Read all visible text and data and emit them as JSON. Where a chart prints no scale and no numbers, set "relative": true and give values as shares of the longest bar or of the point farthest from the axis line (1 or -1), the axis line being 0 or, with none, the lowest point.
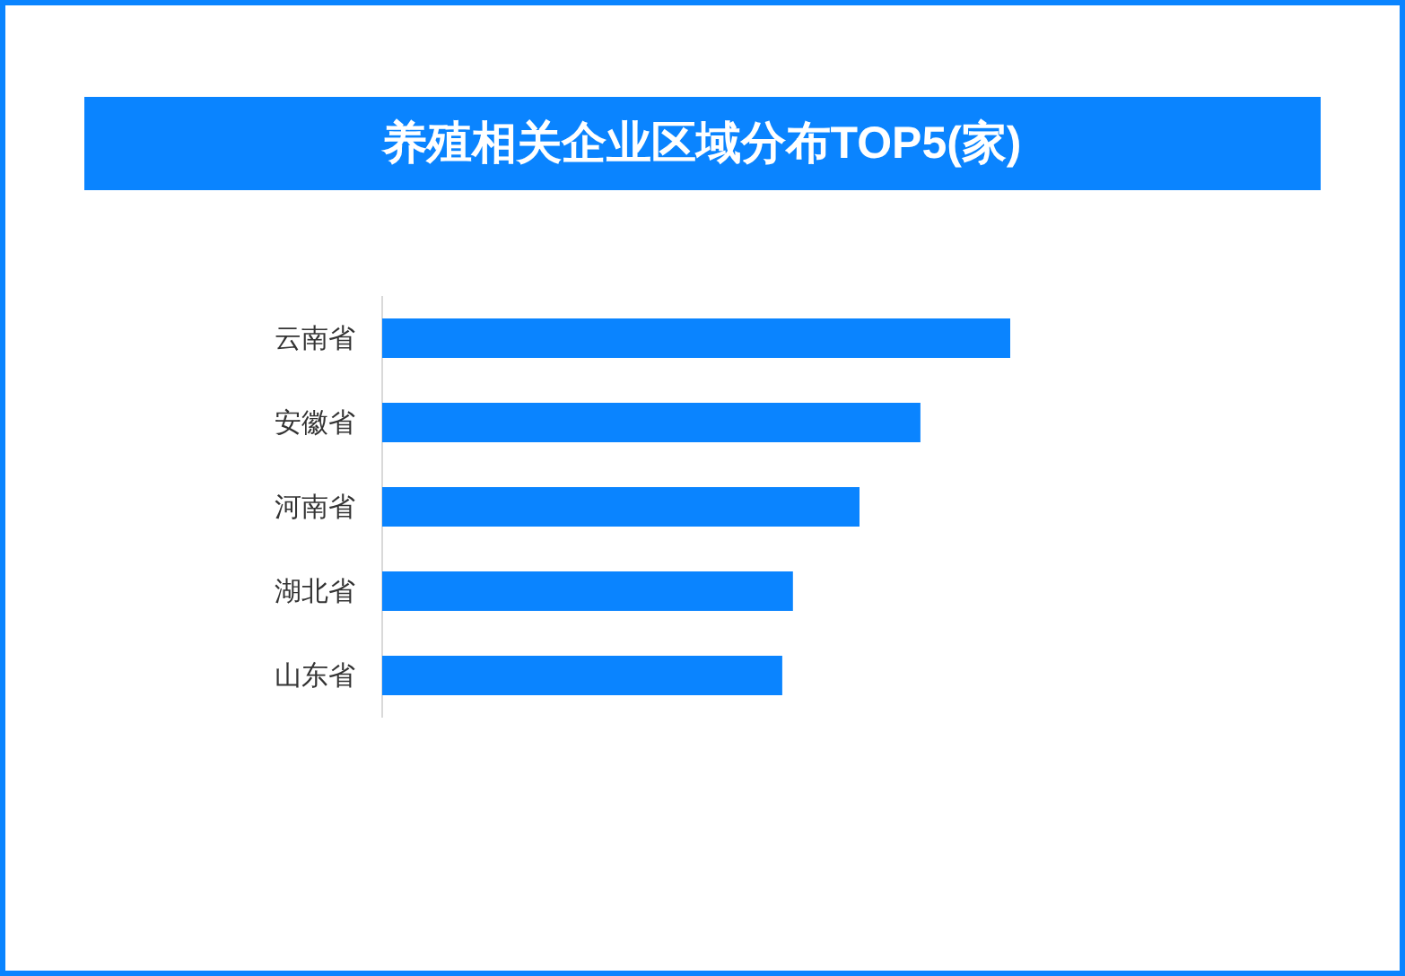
{
  "chart_data": {
    "type": "bar",
    "orientation": "horizontal",
    "relative": true,
    "title": "养殖相关企业区域分布TOP5(家)",
    "categories": [
      "云南省",
      "安徽省",
      "河南省",
      "湖北省",
      "山东省"
    ],
    "values": [
      1,
      0.857,
      0.76,
      0.654,
      0.637
    ],
    "color": "#0a84ff"
  }
}
